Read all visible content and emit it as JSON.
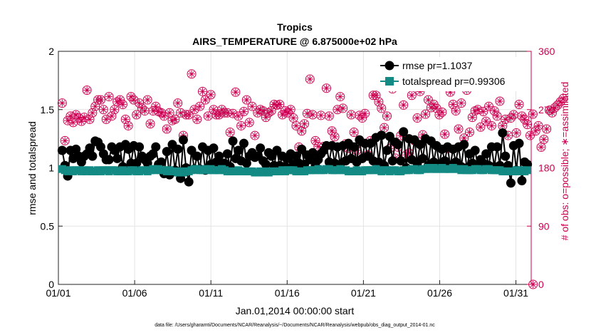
{
  "chart_data": {
    "type": "line",
    "title": "Tropics",
    "subtitle": "AIRS_TEMPERATURE @ 6.875000e+02 hPa",
    "xlabel": "Jan.01,2014 00:00:00 start",
    "ylabel": "rmse and totalspread",
    "ylabel_right": "# of obs: o=possible; ∗=assimilated",
    "footer": "data file: /Users/gharamti/Documents/NCAR/Reanalysis/~/Documents/NCAR/Reanalysis/webpub/obs_diag_output_2014-01.nc",
    "xlim": [
      0,
      31
    ],
    "ylim": [
      0,
      2
    ],
    "ylim_right": [
      0,
      360
    ],
    "x_ticks": [
      0,
      5,
      10,
      15,
      20,
      25,
      30
    ],
    "x_tick_labels": [
      "01/01",
      "01/06",
      "01/11",
      "01/16",
      "01/21",
      "01/26",
      "01/31"
    ],
    "y_ticks": [
      0,
      0.5,
      1,
      1.5,
      2
    ],
    "y_tick_labels": [
      "0",
      "0.5",
      "1",
      "1.5",
      "2"
    ],
    "y_ticks_right": [
      0,
      90,
      180,
      270,
      360
    ],
    "y_tick_labels_right": [
      "0",
      "90",
      "180",
      "270",
      "360"
    ],
    "grid": true,
    "legend_position": "top-right",
    "colors": {
      "rmse": "#000000",
      "spread": "#138a84",
      "obs": "#cc0050",
      "grid": "#e3e3e3"
    },
    "series": [
      {
        "name": "rmse pr=1.1037",
        "axis": "left",
        "values": [
          1.15,
          1.02,
          0.93,
          1.15,
          1.08,
          1.16,
          1.1,
          1.05,
          1.1,
          1.12,
          1.17,
          1.1,
          1.23,
          1.22,
          1.18,
          1.12,
          1.07,
          1.07,
          1.18,
          1.15,
          1.08,
          1.18,
          1.01,
          1.2,
          1.16,
          1.04,
          1.19,
          1.04,
          1.18,
          1.1,
          1.07,
          1.04,
          1.1,
          1.12,
          1.18,
          1.03,
          1.05,
          0.95,
          1.14,
          0.94,
          1.2,
          0.98,
          1.16,
          0.91,
          1.24,
          1.0,
          0.88,
          1.15,
          0.99,
          1.1,
          0.99,
          1.18,
          0.98,
          1.15,
          1.03,
          1.17,
          1.05,
          1.1,
          1.02,
          1.04,
          1.12,
          1.01,
          1.23,
          1.08,
          1.15,
          1.06,
          1.21,
          1.04,
          1.1,
          1.13,
          1.09,
          1.1,
          1.17,
          1.06,
          1.03,
          1.13,
          1.1,
          1.02,
          1.15,
          1.02,
          1.1,
          1.01,
          1.08,
          1.12,
          1.03,
          1.1,
          1.04,
          1.16,
          1.03,
          1.11,
          1.07,
          1.13,
          1.02,
          1.07,
          1.12,
          1.15,
          1.19,
          1.05,
          1.19,
          1.04,
          1.18,
          1.03,
          1.19,
          1.06,
          1.21,
          1.08,
          1.18,
          1.05,
          1.24,
          1.08,
          1.21,
          1.1,
          1.21,
          1.06,
          1.26,
          1.05,
          1.28,
          1.02,
          1.15,
          1.27,
          1.06,
          1.22,
          1.2,
          1.06,
          1.31,
          1.0,
          1.25,
          1.07,
          1.24,
          1.04,
          1.2,
          1.08,
          1.25,
          1.02,
          1.23,
          1.05,
          1.19,
          1.03,
          1.16,
          1.06,
          1.18,
          1.02,
          1.16,
          1.05,
          1.18,
          1.01,
          1.2,
          1.0,
          1.12,
          1.04,
          1.15,
          1.02,
          1.07,
          1.04,
          1.12,
          1.02,
          1.18,
          1.01,
          1.18,
          1.02,
          1.3,
          1.1,
          1.02,
          0.87,
          1.19,
          0.98,
          1.21,
          0.89,
          1.05,
          1.03
        ]
      },
      {
        "name": "totalspread pr=0.99306",
        "axis": "left",
        "values": [
          0.99,
          0.98,
          0.97,
          0.98,
          0.97,
          0.98,
          0.98,
          0.97,
          0.98,
          0.97,
          0.98,
          0.97,
          0.97,
          0.98,
          0.97,
          0.98,
          0.98,
          0.97,
          0.98,
          0.98,
          0.97,
          0.97,
          0.98,
          0.97,
          0.97,
          0.98,
          0.98,
          0.97,
          0.97,
          0.98,
          0.98,
          0.97,
          0.98,
          0.99,
          0.98,
          0.99,
          0.98,
          0.98,
          0.97,
          0.98,
          0.97,
          0.97,
          0.96,
          0.97,
          0.96,
          0.97,
          0.97,
          0.98,
          0.99,
          0.99,
          0.98,
          0.98,
          0.99,
          0.98,
          0.99,
          0.98,
          0.98,
          0.98,
          0.99,
          0.98,
          0.97,
          0.97,
          0.97,
          0.97,
          0.98,
          0.97,
          0.97,
          0.97,
          0.97,
          0.97,
          0.96,
          0.96,
          0.97,
          0.96,
          0.97,
          0.96,
          0.97,
          0.97,
          0.97,
          0.97,
          0.98,
          0.97,
          0.98,
          0.98,
          0.98,
          0.97,
          0.97,
          0.97,
          0.97,
          0.98,
          0.98,
          0.98,
          0.98,
          0.99,
          0.98,
          0.98,
          0.99,
          0.99,
          0.98,
          0.98,
          0.98,
          0.99,
          0.98,
          0.98,
          0.97,
          0.97,
          0.97,
          0.98,
          0.97,
          0.97,
          0.98,
          0.98,
          0.98,
          0.98,
          0.99,
          0.98,
          0.97,
          0.98,
          0.98,
          0.97,
          0.98,
          0.98,
          0.97,
          0.97,
          0.98,
          0.98,
          0.98,
          0.99,
          0.99,
          0.98,
          0.98,
          0.99,
          0.99,
          1.0,
          0.99,
          1.0,
          0.99,
          0.99,
          1.0,
          0.99,
          0.99,
          0.99,
          1.0,
          0.99,
          0.99,
          0.98,
          0.99,
          0.98,
          0.98,
          0.98,
          0.99,
          0.99,
          0.98,
          0.98,
          0.99,
          0.99,
          0.98,
          0.98,
          0.98,
          0.98,
          0.97,
          0.97,
          0.97,
          0.97,
          0.97,
          0.98,
          0.97,
          0.98,
          0.97,
          0.98
        ]
      },
      {
        "name": "possible",
        "axis": "right",
        "marker": "circle",
        "values": [
          280,
          222,
          253,
          260,
          250,
          262,
          257,
          252,
          258,
          300,
          255,
          265,
          275,
          285,
          285,
          270,
          255,
          290,
          260,
          270,
          282,
          285,
          278,
          255,
          245,
          290,
          285,
          262,
          280,
          272,
          268,
          285,
          248,
          268,
          275,
          267,
          265,
          260,
          240,
          265,
          253,
          255,
          280,
          265,
          230,
          262,
          262,
          325,
          270,
          255,
          275,
          298,
          285,
          260,
          293,
          270,
          262,
          262,
          270,
          265,
          265,
          235,
          264,
          297,
          260,
          245,
          267,
          285,
          250,
          275,
          230,
          265,
          270,
          268,
          258,
          265,
          268,
          278,
          277,
          278,
          262,
          268,
          265,
          270,
          257,
          245,
          212,
          237,
          248,
          264,
          317,
          262,
          222,
          213,
          261,
          213,
          303,
          260,
          237,
          228,
          270,
          290,
          272,
          217,
          210,
          262,
          235,
          207,
          261,
          257,
          264,
          200,
          222,
          292,
          292,
          282,
          272,
          242,
          260,
          210,
          302,
          195,
          212,
          230,
          277,
          200,
          203,
          292,
          222,
          257,
          298,
          231,
          263,
          285,
          273,
          278,
          272,
          262,
          266,
          232,
          210,
          297,
          278,
          268,
          240,
          280,
          226,
          300,
          235,
          258,
          268,
          270,
          243,
          267,
          252,
          275,
          245,
          268,
          260,
          283,
          245,
          255,
          230,
          257,
          262,
          234,
          278,
          260,
          255,
          247,
          230,
          263,
          237,
          245,
          212,
          224,
          240,
          269,
          265,
          273,
          277,
          282,
          287
        ]
      },
      {
        "name": "assimilated",
        "axis": "right",
        "marker": "star",
        "values": [
          280,
          222,
          253,
          260,
          250,
          262,
          257,
          252,
          258,
          300,
          255,
          265,
          275,
          285,
          285,
          270,
          255,
          290,
          260,
          270,
          282,
          285,
          278,
          255,
          245,
          290,
          285,
          262,
          280,
          272,
          268,
          285,
          248,
          268,
          275,
          267,
          265,
          260,
          240,
          265,
          253,
          255,
          280,
          265,
          230,
          262,
          262,
          325,
          270,
          255,
          275,
          298,
          285,
          260,
          293,
          270,
          262,
          262,
          270,
          265,
          265,
          235,
          264,
          297,
          260,
          245,
          267,
          285,
          250,
          275,
          230,
          265,
          270,
          268,
          258,
          265,
          268,
          278,
          277,
          278,
          262,
          268,
          265,
          270,
          257,
          245,
          212,
          237,
          248,
          264,
          317,
          262,
          222,
          213,
          261,
          213,
          303,
          260,
          237,
          228,
          270,
          290,
          272,
          217,
          210,
          262,
          235,
          207,
          261,
          257,
          264,
          200,
          222,
          292,
          292,
          282,
          272,
          242,
          260,
          210,
          302,
          195,
          212,
          230,
          277,
          200,
          203,
          292,
          222,
          257,
          298,
          231,
          263,
          285,
          273,
          278,
          272,
          262,
          266,
          232,
          210,
          297,
          278,
          268,
          240,
          280,
          226,
          300,
          235,
          258,
          268,
          270,
          243,
          267,
          252,
          275,
          245,
          268,
          260,
          283,
          245,
          255,
          230,
          257,
          262,
          234,
          278,
          260,
          255,
          247,
          230,
          263,
          237,
          245,
          212,
          224,
          240,
          269,
          265,
          273,
          277,
          282,
          287
        ]
      }
    ],
    "annotations": [
      {
        "name": "final-point",
        "x": 31.125,
        "possible": 0,
        "assimilated": 0
      }
    ]
  }
}
